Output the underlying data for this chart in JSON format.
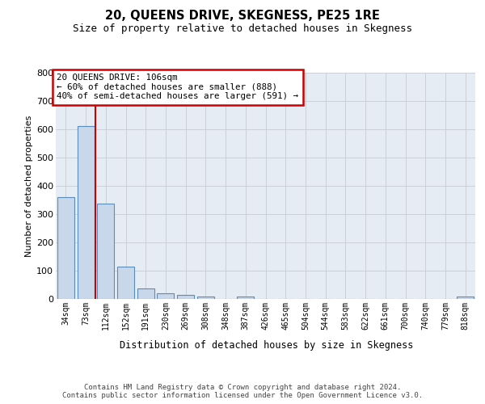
{
  "title": "20, QUEENS DRIVE, SKEGNESS, PE25 1RE",
  "subtitle": "Size of property relative to detached houses in Skegness",
  "xlabel": "Distribution of detached houses by size in Skegness",
  "ylabel": "Number of detached properties",
  "bar_labels": [
    "34sqm",
    "73sqm",
    "112sqm",
    "152sqm",
    "191sqm",
    "230sqm",
    "269sqm",
    "308sqm",
    "348sqm",
    "387sqm",
    "426sqm",
    "465sqm",
    "504sqm",
    "544sqm",
    "583sqm",
    "622sqm",
    "661sqm",
    "700sqm",
    "740sqm",
    "779sqm",
    "818sqm"
  ],
  "bar_values": [
    360,
    610,
    338,
    115,
    37,
    20,
    15,
    10,
    0,
    8,
    0,
    0,
    0,
    0,
    0,
    0,
    0,
    0,
    0,
    0,
    8
  ],
  "bar_color": "#c8d8ea",
  "bar_edge_color": "#5b8db8",
  "grid_color": "#c8ccd4",
  "bg_color": "#e5ecf4",
  "vline_color": "#cc0000",
  "vline_position": 1.5,
  "annotation_line1": "20 QUEENS DRIVE: 106sqm",
  "annotation_line2": "← 60% of detached houses are smaller (888)",
  "annotation_line3": "40% of semi-detached houses are larger (591) →",
  "annotation_box_edge": "#cc0000",
  "ylim": [
    0,
    800
  ],
  "yticks": [
    0,
    100,
    200,
    300,
    400,
    500,
    600,
    700,
    800
  ],
  "footer_line1": "Contains HM Land Registry data © Crown copyright and database right 2024.",
  "footer_line2": "Contains public sector information licensed under the Open Government Licence v3.0."
}
